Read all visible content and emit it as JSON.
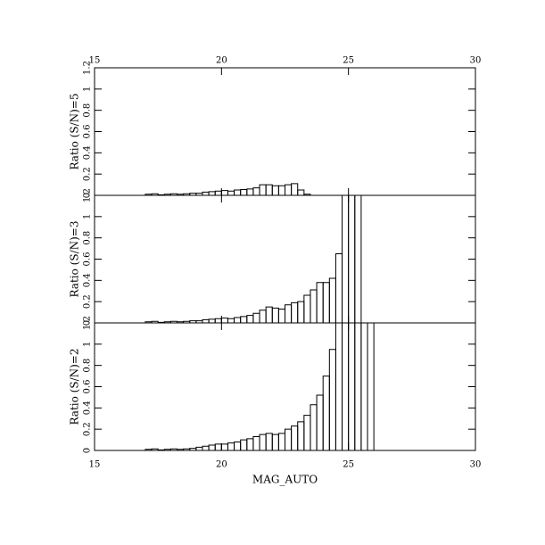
{
  "chart_data": [
    {
      "type": "histogram",
      "ylabel": "Ratio (S/N)=5",
      "xtick_labels": "top",
      "xlim": [
        15,
        30
      ],
      "xticks": [
        15,
        20,
        25,
        30
      ],
      "ylim": [
        0,
        1.2
      ],
      "yticks": [
        0,
        0.2,
        0.4,
        0.6,
        0.8,
        1,
        1.2
      ],
      "bins": [
        17,
        17.25,
        17.5,
        17.75,
        18,
        18.25,
        18.5,
        18.75,
        19,
        19.25,
        19.5,
        19.75,
        20,
        20.25,
        20.5,
        20.75,
        21,
        21.25,
        21.5,
        21.75,
        22,
        22.25,
        22.5,
        22.75,
        23,
        23.25,
        23.5,
        23.75,
        24,
        24.25,
        24.5,
        24.75,
        25,
        25.25,
        25.5,
        25.75,
        26
      ],
      "values": [
        0.01,
        0.015,
        0.005,
        0.01,
        0.015,
        0.01,
        0.015,
        0.02,
        0.02,
        0.03,
        0.035,
        0.04,
        0.045,
        0.04,
        0.05,
        0.055,
        0.06,
        0.07,
        0.1,
        0.1,
        0.09,
        0.09,
        0.1,
        0.11,
        0.05,
        0.01,
        0,
        0,
        0,
        0,
        0,
        0,
        0,
        0,
        0,
        0
      ],
      "color": "#000000"
    },
    {
      "type": "histogram",
      "ylabel": "Ratio (S/N)=3",
      "xlim": [
        15,
        30
      ],
      "xticks": [
        15,
        20,
        25,
        30
      ],
      "ylim": [
        0,
        1.2
      ],
      "yticks": [
        0,
        0.2,
        0.4,
        0.6,
        0.8,
        1,
        1.2
      ],
      "bins": [
        17,
        17.25,
        17.5,
        17.75,
        18,
        18.25,
        18.5,
        18.75,
        19,
        19.25,
        19.5,
        19.75,
        20,
        20.25,
        20.5,
        20.75,
        21,
        21.25,
        21.5,
        21.75,
        22,
        22.25,
        22.5,
        22.75,
        23,
        23.25,
        23.5,
        23.75,
        24,
        24.25,
        24.5,
        24.75,
        25,
        25.25,
        25.5,
        25.75,
        26
      ],
      "values": [
        0.01,
        0.015,
        0.005,
        0.01,
        0.015,
        0.01,
        0.015,
        0.02,
        0.02,
        0.03,
        0.035,
        0.04,
        0.045,
        0.04,
        0.05,
        0.06,
        0.07,
        0.09,
        0.12,
        0.15,
        0.14,
        0.13,
        0.17,
        0.19,
        0.2,
        0.26,
        0.31,
        0.38,
        0.38,
        0.42,
        0.65,
        1.3,
        1.3,
        1.3,
        0,
        0
      ],
      "color": "#000000"
    },
    {
      "type": "histogram",
      "ylabel": "Ratio (S/N)=2",
      "xlabel": "MAG_AUTO",
      "xtick_labels": "bottom",
      "xlim": [
        15,
        30
      ],
      "xticks": [
        15,
        20,
        25,
        30
      ],
      "ylim": [
        0,
        1.2
      ],
      "yticks": [
        0,
        0.2,
        0.4,
        0.6,
        0.8,
        1,
        1.2
      ],
      "bins": [
        17,
        17.25,
        17.5,
        17.75,
        18,
        18.25,
        18.5,
        18.75,
        19,
        19.25,
        19.5,
        19.75,
        20,
        20.25,
        20.5,
        20.75,
        21,
        21.25,
        21.5,
        21.75,
        22,
        22.25,
        22.5,
        22.75,
        23,
        23.25,
        23.5,
        23.75,
        24,
        24.25,
        24.5,
        24.75,
        25,
        25.25,
        25.5,
        25.75,
        26
      ],
      "values": [
        0.01,
        0.015,
        0.005,
        0.01,
        0.015,
        0.01,
        0.015,
        0.02,
        0.03,
        0.04,
        0.05,
        0.06,
        0.06,
        0.07,
        0.08,
        0.1,
        0.11,
        0.13,
        0.15,
        0.16,
        0.15,
        0.16,
        0.2,
        0.23,
        0.27,
        0.33,
        0.43,
        0.52,
        0.7,
        0.95,
        1.3,
        1.3,
        1.3,
        1.3,
        1.3,
        1.3
      ],
      "color": "#000000"
    }
  ]
}
